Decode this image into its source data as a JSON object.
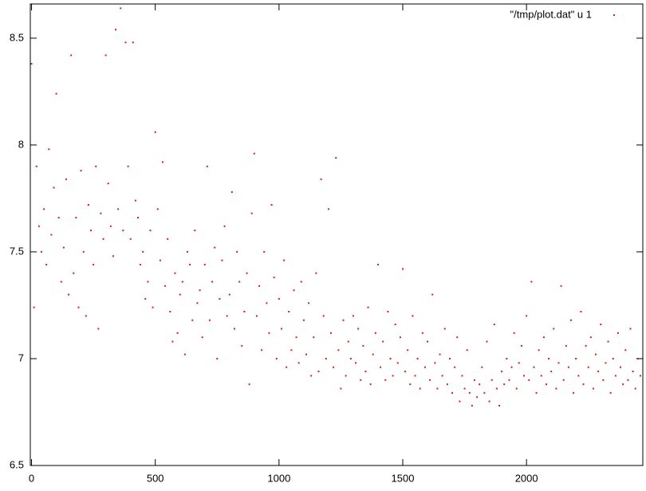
{
  "chart_data": {
    "type": "scatter",
    "color": "#e0191e",
    "legend": "top right",
    "border": true,
    "xlim": [
      -5,
      2470
    ],
    "ylim": [
      6.5,
      8.66
    ],
    "xticks": [
      0,
      500,
      1000,
      1500,
      2000
    ],
    "yticks": [
      6.5,
      7,
      7.5,
      8,
      8.5
    ],
    "series": [
      {
        "name": "\"/tmp/plot.dat\" u 1",
        "color": "#e0191e",
        "x": [
          0,
          10,
          20,
          30,
          40,
          50,
          60,
          70,
          80,
          90,
          100,
          110,
          120,
          130,
          140,
          150,
          160,
          170,
          180,
          190,
          200,
          210,
          220,
          230,
          240,
          250,
          260,
          270,
          280,
          290,
          300,
          310,
          320,
          330,
          340,
          350,
          360,
          370,
          380,
          390,
          400,
          410,
          420,
          430,
          440,
          450,
          460,
          470,
          480,
          490,
          500,
          510,
          520,
          530,
          540,
          550,
          560,
          570,
          580,
          590,
          600,
          610,
          620,
          630,
          640,
          650,
          660,
          670,
          680,
          690,
          700,
          710,
          720,
          730,
          740,
          750,
          760,
          770,
          780,
          790,
          800,
          810,
          820,
          830,
          840,
          850,
          860,
          870,
          880,
          890,
          900,
          910,
          920,
          930,
          940,
          950,
          960,
          970,
          980,
          990,
          1000,
          1010,
          1020,
          1030,
          1040,
          1050,
          1060,
          1070,
          1080,
          1090,
          1100,
          1110,
          1120,
          1130,
          1140,
          1150,
          1160,
          1170,
          1180,
          1190,
          1200,
          1210,
          1220,
          1230,
          1240,
          1250,
          1260,
          1270,
          1280,
          1290,
          1300,
          1310,
          1320,
          1330,
          1340,
          1350,
          1360,
          1370,
          1380,
          1390,
          1400,
          1410,
          1420,
          1430,
          1440,
          1450,
          1460,
          1470,
          1480,
          1490,
          1500,
          1510,
          1520,
          1530,
          1540,
          1550,
          1560,
          1570,
          1580,
          1590,
          1600,
          1610,
          1620,
          1630,
          1640,
          1650,
          1660,
          1670,
          1680,
          1690,
          1700,
          1710,
          1720,
          1730,
          1740,
          1750,
          1760,
          1770,
          1780,
          1790,
          1800,
          1810,
          1820,
          1830,
          1840,
          1850,
          1860,
          1870,
          1880,
          1890,
          1900,
          1910,
          1920,
          1930,
          1940,
          1950,
          1960,
          1970,
          1980,
          1990,
          2000,
          2010,
          2020,
          2030,
          2040,
          2050,
          2060,
          2070,
          2080,
          2090,
          2100,
          2110,
          2120,
          2130,
          2140,
          2150,
          2160,
          2170,
          2180,
          2190,
          2200,
          2210,
          2220,
          2230,
          2240,
          2250,
          2260,
          2270,
          2280,
          2290,
          2300,
          2310,
          2320,
          2330,
          2340,
          2350,
          2360,
          2370,
          2380,
          2390,
          2400,
          2410,
          2420,
          2430,
          2440,
          2450,
          2460
        ],
        "values": [
          8.38,
          7.24,
          7.9,
          7.62,
          7.5,
          7.7,
          7.44,
          7.98,
          7.58,
          7.8,
          8.24,
          7.66,
          7.36,
          7.52,
          7.84,
          7.3,
          8.42,
          7.4,
          7.66,
          7.24,
          7.88,
          7.5,
          7.2,
          7.72,
          7.6,
          7.44,
          7.9,
          7.14,
          7.68,
          7.56,
          8.42,
          7.82,
          7.62,
          7.48,
          8.54,
          7.7,
          8.64,
          7.6,
          8.48,
          7.9,
          7.56,
          8.48,
          7.74,
          7.66,
          7.44,
          7.5,
          7.28,
          7.36,
          7.6,
          7.24,
          8.06,
          7.7,
          7.46,
          7.92,
          7.34,
          7.56,
          7.22,
          7.08,
          7.4,
          7.12,
          7.3,
          7.36,
          7.02,
          7.5,
          7.44,
          7.18,
          7.6,
          7.26,
          7.32,
          7.1,
          7.44,
          7.9,
          7.18,
          7.36,
          7.52,
          7.0,
          7.28,
          7.46,
          7.62,
          7.2,
          7.3,
          7.78,
          7.14,
          7.5,
          7.36,
          7.06,
          7.22,
          7.4,
          6.88,
          7.68,
          7.96,
          7.2,
          7.34,
          7.04,
          7.5,
          7.26,
          7.12,
          7.72,
          7.38,
          7.0,
          7.28,
          7.14,
          7.46,
          6.96,
          7.22,
          7.04,
          7.32,
          7.1,
          6.98,
          7.36,
          7.18,
          7.02,
          7.26,
          6.92,
          7.1,
          7.4,
          6.94,
          7.84,
          7.2,
          7.0,
          7.7,
          7.12,
          6.96,
          7.94,
          7.04,
          6.86,
          7.18,
          6.92,
          7.08,
          7.0,
          7.2,
          6.98,
          7.14,
          6.9,
          7.06,
          6.94,
          7.24,
          6.88,
          7.02,
          7.12,
          7.44,
          6.96,
          7.08,
          6.9,
          7.22,
          7.0,
          6.92,
          7.16,
          6.98,
          7.1,
          7.42,
          6.94,
          7.04,
          6.88,
          7.2,
          6.92,
          7.0,
          6.86,
          7.12,
          6.96,
          7.08,
          6.9,
          7.3,
          6.98,
          6.86,
          7.02,
          6.92,
          7.14,
          6.88,
          7.0,
          6.84,
          6.96,
          7.1,
          6.8,
          6.92,
          6.86,
          7.04,
          6.84,
          6.78,
          6.9,
          6.82,
          6.88,
          6.96,
          6.84,
          7.08,
          6.8,
          6.9,
          7.16,
          6.86,
          6.78,
          6.94,
          6.88,
          7.0,
          6.9,
          6.96,
          7.12,
          6.86,
          6.98,
          7.06,
          6.92,
          7.2,
          6.9,
          7.36,
          6.96,
          6.84,
          7.04,
          6.92,
          7.1,
          6.88,
          7.0,
          6.94,
          7.14,
          6.86,
          6.98,
          7.34,
          6.9,
          7.06,
          6.96,
          7.18,
          6.84,
          7.0,
          6.92,
          7.22,
          6.88,
          7.06,
          6.96,
          7.1,
          6.86,
          7.02,
          6.94,
          7.16,
          6.9,
          6.98,
          7.08,
          6.84,
          7.0,
          6.92,
          7.12,
          6.96,
          6.88,
          7.04,
          6.9,
          7.14,
          6.94,
          6.86,
          7.0,
          6.92
        ]
      }
    ]
  }
}
